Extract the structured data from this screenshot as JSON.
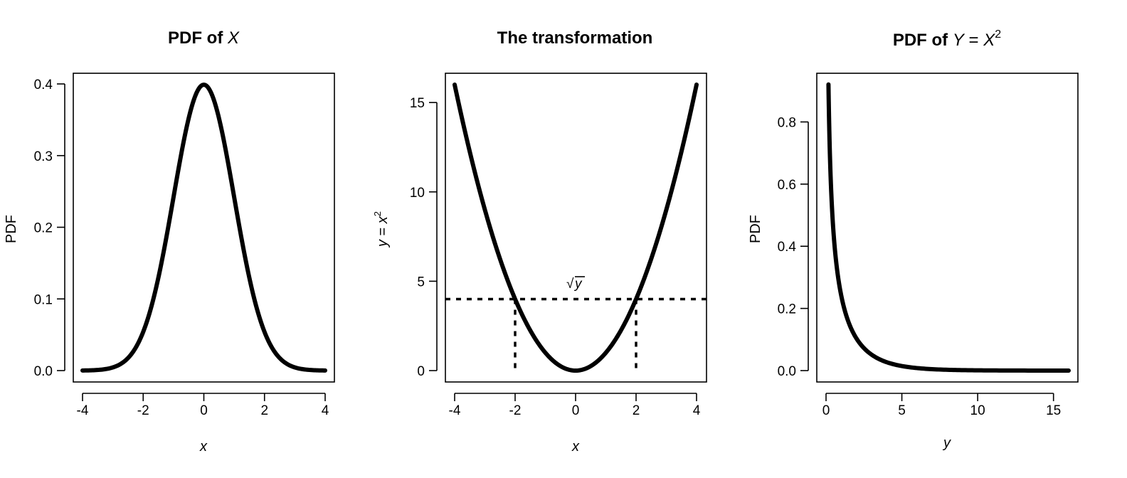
{
  "chart_data": [
    {
      "type": "line",
      "title": {
        "prefix": "PDF of ",
        "var": "X"
      },
      "xlabel": "x",
      "ylabel": "PDF",
      "xlim": [
        -4,
        4
      ],
      "ylim": [
        0,
        0.4
      ],
      "x_ticks": [
        -4,
        -2,
        0,
        2,
        4
      ],
      "y_ticks": [
        0.0,
        0.1,
        0.2,
        0.3,
        0.4
      ],
      "y_tick_labels": [
        "0.0",
        "0.1",
        "0.2",
        "0.3",
        "0.4"
      ],
      "series": [
        {
          "x": [
            -4,
            -3.5,
            -3,
            -2.5,
            -2,
            -1.5,
            -1,
            -0.5,
            0,
            0.5,
            1,
            1.5,
            2,
            2.5,
            3,
            3.5,
            4
          ],
          "y": [
            0.0001,
            0.0009,
            0.0044,
            0.0175,
            0.054,
            0.1295,
            0.242,
            0.3521,
            0.3989,
            0.3521,
            0.242,
            0.1295,
            0.054,
            0.0175,
            0.0044,
            0.0009,
            0.0001
          ]
        }
      ]
    },
    {
      "type": "line",
      "title": "The transformation",
      "xlabel": "x",
      "ylabel": {
        "lhs": "y",
        "eq": " = ",
        "rhs": "x",
        "sup": "2"
      },
      "annotation": {
        "root": "√",
        "var": "y"
      },
      "xlim": [
        -4,
        4
      ],
      "ylim": [
        0,
        16
      ],
      "x_ticks": [
        -4,
        -2,
        0,
        2,
        4
      ],
      "y_ticks": [
        0,
        5,
        10,
        15
      ],
      "y_tick_labels": [
        "0",
        "5",
        "10",
        "15"
      ],
      "series": [
        {
          "x": [
            -4,
            -3.5,
            -3,
            -2.5,
            -2,
            -1.5,
            -1,
            -0.5,
            0,
            0.5,
            1,
            1.5,
            2,
            2.5,
            3,
            3.5,
            4
          ],
          "y": [
            16,
            12.25,
            9,
            6.25,
            4,
            2.25,
            1,
            0.25,
            0,
            0.25,
            1,
            2.25,
            4,
            6.25,
            9,
            12.25,
            16
          ]
        }
      ],
      "reference_lines": {
        "horizontal_y": 4,
        "vertical_x": [
          -2,
          2
        ],
        "style": "dotted"
      }
    },
    {
      "type": "line",
      "title": {
        "prefix": "PDF of ",
        "lhs": "Y",
        "eq": " = ",
        "rhs": "X",
        "sup": "2"
      },
      "xlabel": "y",
      "ylabel": "PDF",
      "xlim": [
        0,
        16
      ],
      "ylim": [
        0,
        0.92
      ],
      "x_ticks": [
        0,
        5,
        10,
        15
      ],
      "y_ticks": [
        0.0,
        0.2,
        0.4,
        0.6,
        0.8
      ],
      "y_tick_labels": [
        "0.0",
        "0.2",
        "0.4",
        "0.6",
        "0.8"
      ],
      "series": [
        {
          "x": [
            0.16,
            0.25,
            0.4,
            0.6,
            0.8,
            1,
            1.5,
            2,
            2.5,
            3,
            4,
            5,
            6,
            8,
            10,
            12,
            14,
            16
          ],
          "y": [
            0.912,
            0.704,
            0.516,
            0.383,
            0.301,
            0.242,
            0.154,
            0.104,
            0.072,
            0.051,
            0.027,
            0.015,
            0.008,
            0.003,
            0.001,
            0.0003,
            0.0001,
            3e-05
          ]
        }
      ]
    }
  ]
}
